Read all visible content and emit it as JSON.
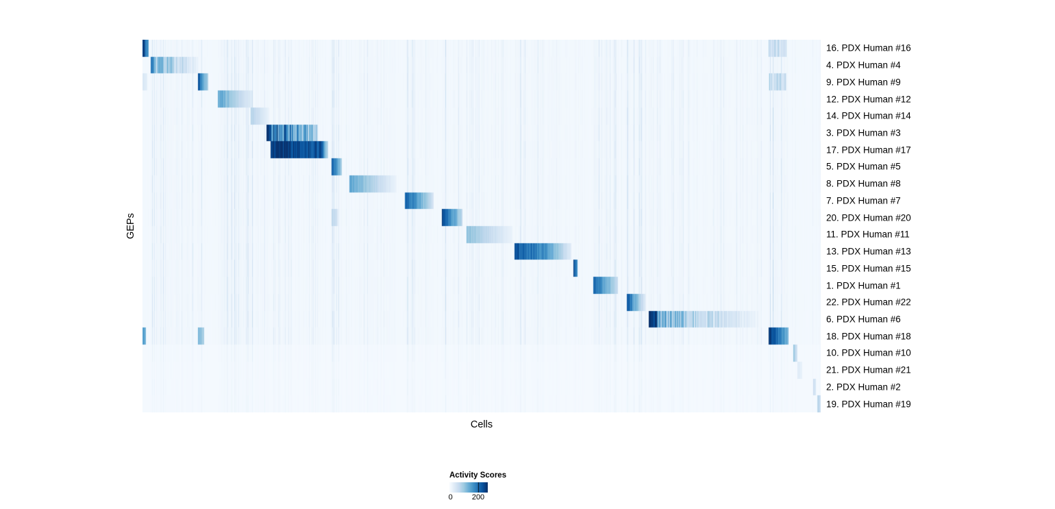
{
  "figure": {
    "background": "#ffffff",
    "text_color": "#000000"
  },
  "chart_data": {
    "type": "heatmap",
    "title": "",
    "xlabel": "Cells",
    "ylabel": "GEPs",
    "value_range": [
      0,
      260
    ],
    "colormap": {
      "name": "Blues",
      "stops": [
        [
          247,
          251,
          255
        ],
        [
          222,
          235,
          247
        ],
        [
          198,
          219,
          239
        ],
        [
          158,
          202,
          225
        ],
        [
          107,
          174,
          214
        ],
        [
          66,
          146,
          198
        ],
        [
          33,
          113,
          181
        ],
        [
          8,
          81,
          156
        ],
        [
          8,
          48,
          107
        ]
      ]
    },
    "legend": {
      "title": "Activity Scores",
      "ticks": [
        {
          "label": "0",
          "pos": 0.03
        },
        {
          "label": "200",
          "pos": 0.75
        }
      ]
    },
    "noise_seed": 1337,
    "column_bands": [
      {
        "start": 0.012,
        "end": 0.083,
        "level": 0.05
      },
      {
        "start": 0.083,
        "end": 0.097,
        "level": 0.04
      },
      {
        "start": 0.111,
        "end": 0.187,
        "level": 0.055
      },
      {
        "start": 0.188,
        "end": 0.268,
        "level": 0.028
      },
      {
        "start": 0.278,
        "end": 0.294,
        "level": 0.05
      },
      {
        "start": 0.305,
        "end": 0.375,
        "level": 0.034
      },
      {
        "start": 0.386,
        "end": 0.43,
        "level": 0.034
      },
      {
        "start": 0.441,
        "end": 0.472,
        "level": 0.05
      },
      {
        "start": 0.477,
        "end": 0.546,
        "level": 0.028
      },
      {
        "start": 0.548,
        "end": 0.632,
        "level": 0.034
      },
      {
        "start": 0.664,
        "end": 0.702,
        "level": 0.045
      },
      {
        "start": 0.714,
        "end": 0.743,
        "level": 0.05
      },
      {
        "start": 0.746,
        "end": 0.913,
        "level": 0.026
      },
      {
        "start": 0.923,
        "end": 0.953,
        "level": 0.07
      }
    ],
    "rows": [
      {
        "label": "16. PDX Human #16",
        "blocks": [
          {
            "start": 0.0,
            "end": 0.009,
            "from": 1.0,
            "to": 0.5
          },
          {
            "start": 0.923,
            "end": 0.949,
            "from": 0.22,
            "to": 0.18,
            "striped": true
          }
        ]
      },
      {
        "label": "4. PDX Human #4",
        "blocks": [
          {
            "start": 0.012,
            "end": 0.081,
            "from": 0.5,
            "to": 0.06,
            "striped": true
          }
        ]
      },
      {
        "label": "9. PDX Human #9",
        "blocks": [
          {
            "start": 0.0,
            "end": 0.007,
            "from": 0.15,
            "to": 0.1
          },
          {
            "start": 0.081,
            "end": 0.096,
            "from": 0.9,
            "to": 0.3
          },
          {
            "start": 0.923,
            "end": 0.949,
            "from": 0.25,
            "to": 0.2,
            "striped": true
          }
        ]
      },
      {
        "label": "12. PDX Human #12",
        "blocks": [
          {
            "start": 0.111,
            "end": 0.162,
            "from": 0.55,
            "to": 0.1
          }
        ]
      },
      {
        "label": "14. PDX Human #14",
        "blocks": [
          {
            "start": 0.159,
            "end": 0.186,
            "from": 0.3,
            "to": 0.07
          }
        ]
      },
      {
        "label": "3. PDX Human #3",
        "blocks": [
          {
            "start": 0.182,
            "end": 0.188,
            "from": 1.0,
            "to": 0.95
          },
          {
            "start": 0.188,
            "end": 0.258,
            "from": 0.75,
            "to": 0.35,
            "striped": true
          }
        ]
      },
      {
        "label": "17. PDX Human #17",
        "blocks": [
          {
            "start": 0.188,
            "end": 0.265,
            "from": 1.0,
            "to": 0.85
          },
          {
            "start": 0.265,
            "end": 0.273,
            "from": 0.75,
            "to": 0.25
          }
        ]
      },
      {
        "label": "5. PDX Human #5",
        "blocks": [
          {
            "start": 0.278,
            "end": 0.293,
            "from": 0.85,
            "to": 0.32
          }
        ]
      },
      {
        "label": "8. PDX Human #8",
        "blocks": [
          {
            "start": 0.305,
            "end": 0.374,
            "from": 0.55,
            "to": 0.06
          }
        ]
      },
      {
        "label": "7. PDX Human #7",
        "blocks": [
          {
            "start": 0.386,
            "end": 0.429,
            "from": 0.85,
            "to": 0.18
          }
        ]
      },
      {
        "label": "20. PDX Human #20",
        "blocks": [
          {
            "start": 0.278,
            "end": 0.287,
            "from": 0.3,
            "to": 0.18
          },
          {
            "start": 0.441,
            "end": 0.471,
            "from": 0.9,
            "to": 0.28
          }
        ]
      },
      {
        "label": "11. PDX Human #11",
        "blocks": [
          {
            "start": 0.477,
            "end": 0.545,
            "from": 0.42,
            "to": 0.06
          }
        ]
      },
      {
        "label": "13. PDX Human #13",
        "blocks": [
          {
            "start": 0.548,
            "end": 0.594,
            "from": 0.85,
            "to": 0.62
          },
          {
            "start": 0.594,
            "end": 0.632,
            "from": 0.62,
            "to": 0.1
          }
        ]
      },
      {
        "label": "15. PDX Human #15",
        "blocks": [
          {
            "start": 0.635,
            "end": 0.641,
            "from": 0.92,
            "to": 0.6
          }
        ]
      },
      {
        "label": "1. PDX Human #1",
        "blocks": [
          {
            "start": 0.664,
            "end": 0.701,
            "from": 0.8,
            "to": 0.22
          }
        ]
      },
      {
        "label": "22. PDX Human #22",
        "blocks": [
          {
            "start": 0.714,
            "end": 0.723,
            "from": 0.9,
            "to": 0.55
          },
          {
            "start": 0.723,
            "end": 0.742,
            "from": 0.55,
            "to": 0.1
          }
        ]
      },
      {
        "label": "6. PDX Human #6",
        "blocks": [
          {
            "start": 0.746,
            "end": 0.758,
            "from": 1.0,
            "to": 0.92
          },
          {
            "start": 0.758,
            "end": 0.913,
            "from": 0.45,
            "to": 0.03,
            "striped": true
          }
        ]
      },
      {
        "label": "18. PDX Human #18",
        "blocks": [
          {
            "start": 0.0,
            "end": 0.005,
            "from": 0.6,
            "to": 0.5
          },
          {
            "start": 0.081,
            "end": 0.09,
            "from": 0.45,
            "to": 0.35
          },
          {
            "start": 0.923,
            "end": 0.952,
            "from": 1.0,
            "to": 0.45
          }
        ]
      },
      {
        "label": "10. PDX Human #10",
        "base": 0.015,
        "noise_scale": 0.4,
        "blocks": [
          {
            "start": 0.959,
            "end": 0.965,
            "from": 0.4,
            "to": 0.15
          }
        ]
      },
      {
        "label": "21. PDX Human #21",
        "base": 0.015,
        "noise_scale": 0.3,
        "blocks": [
          {
            "start": 0.965,
            "end": 0.972,
            "from": 0.12,
            "to": 0.08
          }
        ]
      },
      {
        "label": "2. PDX Human #2",
        "base": 0.015,
        "noise_scale": 0.3,
        "blocks": [
          {
            "start": 0.988,
            "end": 0.992,
            "from": 0.25,
            "to": 0.18
          }
        ]
      },
      {
        "label": "19. PDX Human #19",
        "base": 0.015,
        "noise_scale": 0.3,
        "blocks": [
          {
            "start": 0.994,
            "end": 1.0,
            "from": 0.3,
            "to": 0.2
          }
        ]
      }
    ]
  }
}
